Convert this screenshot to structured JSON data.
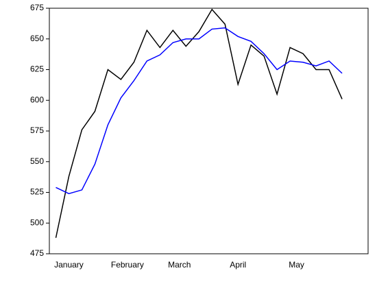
{
  "chart_data": {
    "type": "line",
    "x": [
      0,
      1,
      2,
      3,
      4,
      5,
      6,
      7,
      8,
      9,
      10,
      11,
      12,
      13,
      14,
      15,
      16,
      17,
      18,
      19,
      20,
      21,
      22
    ],
    "xlim": [
      -0.5,
      24
    ],
    "xticks": [
      {
        "value": 1,
        "label": "January"
      },
      {
        "value": 5.5,
        "label": "February"
      },
      {
        "value": 9.5,
        "label": "March"
      },
      {
        "value": 14,
        "label": "April"
      },
      {
        "value": 18.5,
        "label": "May"
      }
    ],
    "ylim": [
      475,
      675
    ],
    "yticks": [
      475,
      500,
      525,
      550,
      575,
      600,
      625,
      650,
      675
    ],
    "grid": false,
    "series": [
      {
        "color": "#000000",
        "values": [
          488,
          538,
          576,
          591,
          625,
          617,
          631,
          657,
          643,
          657,
          644,
          656,
          674,
          662,
          613,
          645,
          636,
          605,
          643,
          638,
          625,
          625,
          601
        ]
      },
      {
        "color": "#0000ff",
        "values": [
          529,
          524,
          527,
          548,
          580,
          602,
          616,
          632,
          637,
          647,
          650,
          650,
          658,
          659,
          652,
          648,
          638,
          625,
          632,
          631,
          628,
          632,
          622
        ]
      }
    ]
  }
}
